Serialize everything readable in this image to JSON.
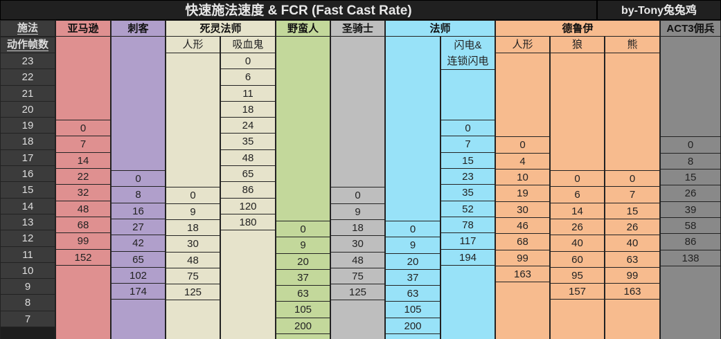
{
  "title": "快速施法速度 & FCR (Fast Cast Rate)",
  "author": "by-Tony兔兔鸡",
  "row_header": {
    "line1": "施法",
    "line2": "动作帧数"
  },
  "frames": [
    "23",
    "22",
    "21",
    "20",
    "19",
    "18",
    "17",
    "16",
    "15",
    "14",
    "13",
    "12",
    "11",
    "10",
    "9",
    "8",
    "7"
  ],
  "groups": [
    {
      "label": "亚马逊",
      "color": "#df9090"
    },
    {
      "label": "刺客",
      "color": "#b09fcb"
    },
    {
      "label": "死灵法师",
      "color": "#e6e3cb"
    },
    {
      "label": "野蛮人",
      "color": "#c3d89b"
    },
    {
      "label": "圣骑士",
      "color": "#bebebe"
    },
    {
      "label": "法师",
      "color": "#98e2f8"
    },
    {
      "label": "德鲁伊",
      "color": "#f7bb8e"
    },
    {
      "label": "ACT3佣兵",
      "color": "#898989"
    }
  ],
  "columns": [
    {
      "sub": "",
      "values": [
        "",
        "",
        "",
        "",
        "0",
        "7",
        "14",
        "22",
        "32",
        "48",
        "68",
        "99",
        "152",
        "",
        "",
        "",
        ""
      ]
    },
    {
      "sub": "",
      "values": [
        "",
        "",
        "",
        "",
        "",
        "",
        "",
        "0",
        "8",
        "16",
        "27",
        "42",
        "65",
        "102",
        "174",
        "",
        ""
      ]
    },
    {
      "sub": "人形",
      "values": [
        "",
        "",
        "",
        "",
        "",
        "",
        "",
        "",
        "0",
        "9",
        "18",
        "30",
        "48",
        "75",
        "125",
        "",
        ""
      ]
    },
    {
      "sub": "吸血鬼",
      "values": [
        "0",
        "6",
        "11",
        "18",
        "24",
        "35",
        "48",
        "65",
        "86",
        "120",
        "180",
        "",
        "",
        "",
        "",
        "",
        ""
      ]
    },
    {
      "sub": "",
      "values": [
        "",
        "",
        "",
        "",
        "",
        "",
        "",
        "",
        "",
        "",
        "0",
        "9",
        "20",
        "37",
        "63",
        "105",
        "200"
      ]
    },
    {
      "sub": "",
      "values": [
        "",
        "",
        "",
        "",
        "",
        "",
        "",
        "",
        "0",
        "9",
        "18",
        "30",
        "48",
        "75",
        "125",
        "",
        ""
      ]
    },
    {
      "sub": "",
      "values": [
        "",
        "",
        "",
        "",
        "",
        "",
        "",
        "",
        "",
        "",
        "0",
        "9",
        "20",
        "37",
        "63",
        "105",
        "200"
      ]
    },
    {
      "sub": "闪电&",
      "sub2": "连锁闪电",
      "values": [
        "",
        "",
        "",
        "",
        "0",
        "7",
        "15",
        "23",
        "35",
        "52",
        "78",
        "117",
        "194",
        "",
        "",
        "",
        ""
      ]
    },
    {
      "sub": "人形",
      "values": [
        "",
        "",
        "",
        "",
        "",
        "0",
        "4",
        "10",
        "19",
        "30",
        "46",
        "68",
        "99",
        "163",
        "",
        "",
        ""
      ]
    },
    {
      "sub": "狼",
      "values": [
        "",
        "",
        "",
        "",
        "",
        "",
        "",
        "0",
        "6",
        "14",
        "26",
        "40",
        "60",
        "95",
        "157",
        "",
        ""
      ]
    },
    {
      "sub": "熊",
      "values": [
        "",
        "",
        "",
        "",
        "",
        "",
        "",
        "0",
        "7",
        "15",
        "26",
        "40",
        "63",
        "99",
        "163",
        "",
        ""
      ]
    },
    {
      "sub": "",
      "values": [
        "",
        "",
        "",
        "",
        "",
        "0",
        "8",
        "15",
        "26",
        "39",
        "58",
        "86",
        "138",
        "",
        "",
        "",
        ""
      ]
    }
  ]
}
